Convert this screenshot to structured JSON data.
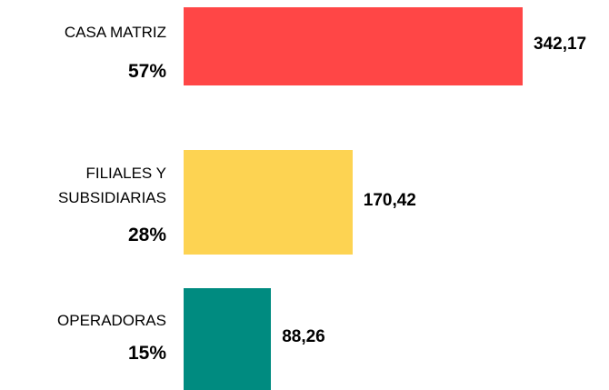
{
  "chart_data": {
    "type": "bar",
    "orientation": "horizontal",
    "categories": [
      "CASA MATRIZ",
      "FILIALES Y SUBSIDIARIAS",
      "OPERADORAS"
    ],
    "values": [
      342.17,
      170.42,
      88.26
    ],
    "value_labels": [
      "342,17",
      "170,42",
      "88,26"
    ],
    "shares": [
      "57%",
      "28%",
      "15%"
    ],
    "colors": [
      "#ff4646",
      "#fdd352",
      "#008b80"
    ]
  }
}
